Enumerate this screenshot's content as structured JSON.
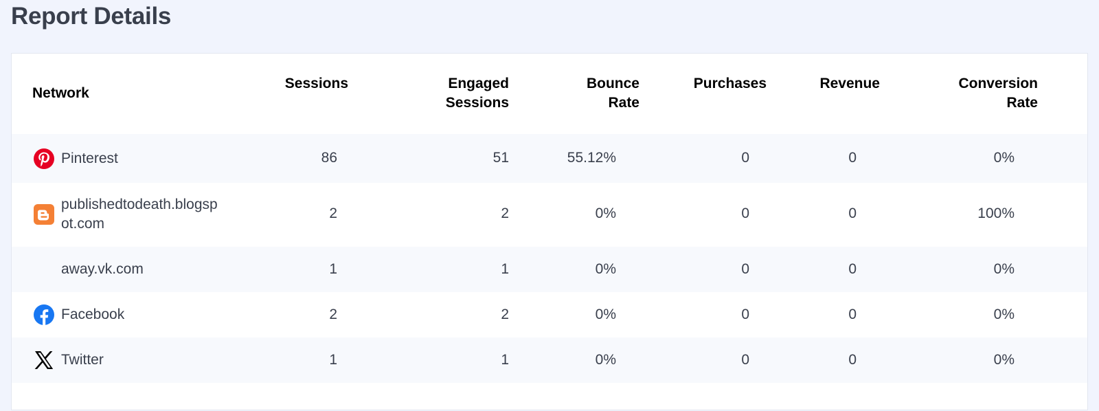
{
  "page": {
    "title": "Report Details"
  },
  "table": {
    "headers": {
      "network": "Network",
      "sessions": "Sessions",
      "engaged": "Engaged Sessions",
      "bounce": "Bounce Rate",
      "purchases": "Purchases",
      "revenue": "Revenue",
      "conversion": "Conversion Rate"
    },
    "rows": [
      {
        "network": "Pinterest",
        "icon": "pinterest-icon",
        "sessions": "86",
        "engaged": "51",
        "bounce": "55.12%",
        "purchases": "0",
        "revenue": "0",
        "conversion": "0%"
      },
      {
        "network": "publishedtodeath.blogspot.com",
        "icon": "blogger-icon",
        "sessions": "2",
        "engaged": "2",
        "bounce": "0%",
        "purchases": "0",
        "revenue": "0",
        "conversion": "100%"
      },
      {
        "network": "away.vk.com",
        "icon": "",
        "sessions": "1",
        "engaged": "1",
        "bounce": "0%",
        "purchases": "0",
        "revenue": "0",
        "conversion": "0%"
      },
      {
        "network": "Facebook",
        "icon": "facebook-icon",
        "sessions": "2",
        "engaged": "2",
        "bounce": "0%",
        "purchases": "0",
        "revenue": "0",
        "conversion": "0%"
      },
      {
        "network": "Twitter",
        "icon": "x-twitter-icon",
        "sessions": "1",
        "engaged": "1",
        "bounce": "0%",
        "purchases": "0",
        "revenue": "0",
        "conversion": "0%"
      }
    ]
  },
  "colors": {
    "background": "#f1f4fd",
    "card": "#ffffff",
    "alt_row": "#f7f9fd",
    "pinterest": "#e60023",
    "blogger": "#f48035",
    "facebook": "#1877f2",
    "twitter": "#000000"
  }
}
